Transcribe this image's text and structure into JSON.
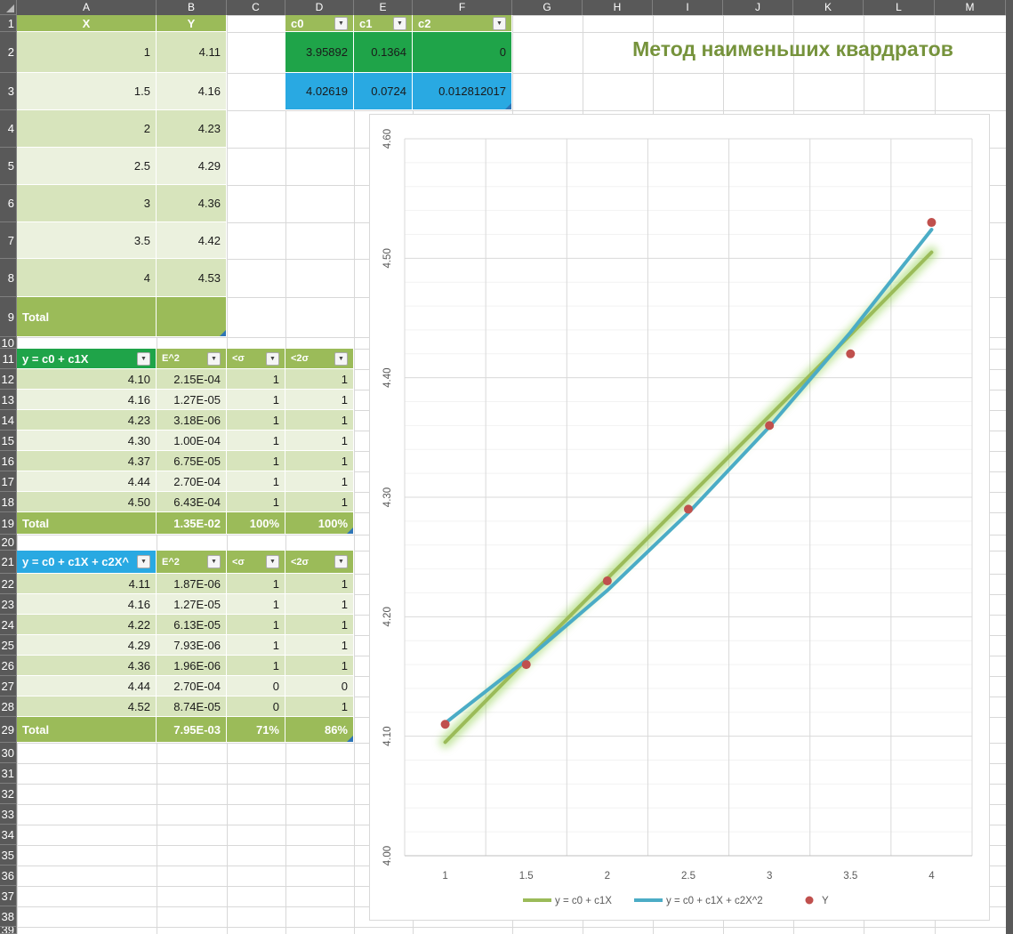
{
  "sheet": {
    "title": "Метод наименьших квардратов",
    "column_headers": [
      "A",
      "B",
      "C",
      "D",
      "E",
      "F",
      "G",
      "H",
      "I",
      "J",
      "K",
      "L",
      "M"
    ],
    "row_headers": [
      "1",
      "2",
      "3",
      "4",
      "5",
      "6",
      "7",
      "8",
      "9",
      "10",
      "11",
      "12",
      "13",
      "14",
      "15",
      "16",
      "17",
      "18",
      "19",
      "20",
      "21",
      "22",
      "23",
      "24",
      "25",
      "26",
      "27",
      "28",
      "29",
      "30",
      "31",
      "32",
      "33",
      "34",
      "35",
      "36",
      "37",
      "38",
      "39"
    ]
  },
  "colors": {
    "header_bar": "#595959",
    "olive_header": "#9BBB59",
    "band_dark": "#D7E4BC",
    "band_light": "#EBF1DE",
    "bright_green": "#1FA449",
    "bright_blue": "#29A9E2",
    "title_green": "#76933C",
    "handle_blue": "#2E75B6"
  },
  "data_table": {
    "col_x": "X",
    "col_y": "Y",
    "rows": [
      [
        "1",
        "4.11"
      ],
      [
        "1.5",
        "4.16"
      ],
      [
        "2",
        "4.23"
      ],
      [
        "2.5",
        "4.29"
      ],
      [
        "3",
        "4.36"
      ],
      [
        "3.5",
        "4.42"
      ],
      [
        "4",
        "4.53"
      ]
    ],
    "total_label": "Total"
  },
  "coefficients": {
    "headers": [
      "c0",
      "c1",
      "c2"
    ],
    "linear": [
      "3.95892",
      "0.1364",
      "0"
    ],
    "quadratic": [
      "4.02619",
      "0.0724",
      "0.012812017"
    ]
  },
  "linear_fit": {
    "headers": [
      "y = c0 + c1X",
      "E^2",
      "<σ",
      "<2σ"
    ],
    "rows": [
      [
        "4.10",
        "2.15E-04",
        "1",
        "1"
      ],
      [
        "4.16",
        "1.27E-05",
        "1",
        "1"
      ],
      [
        "4.23",
        "3.18E-06",
        "1",
        "1"
      ],
      [
        "4.30",
        "1.00E-04",
        "1",
        "1"
      ],
      [
        "4.37",
        "6.75E-05",
        "1",
        "1"
      ],
      [
        "4.44",
        "2.70E-04",
        "1",
        "1"
      ],
      [
        "4.50",
        "6.43E-04",
        "1",
        "1"
      ]
    ],
    "total": [
      "Total",
      "1.35E-02",
      "100%",
      "100%"
    ]
  },
  "quadratic_fit": {
    "headers": [
      "y = c0 + c1X + c2X^",
      "E^2",
      "<σ",
      "<2σ"
    ],
    "rows": [
      [
        "4.11",
        "1.87E-06",
        "1",
        "1"
      ],
      [
        "4.16",
        "1.27E-05",
        "1",
        "1"
      ],
      [
        "4.22",
        "6.13E-05",
        "1",
        "1"
      ],
      [
        "4.29",
        "7.93E-06",
        "1",
        "1"
      ],
      [
        "4.36",
        "1.96E-06",
        "1",
        "1"
      ],
      [
        "4.44",
        "2.70E-04",
        "0",
        "0"
      ],
      [
        "4.52",
        "8.74E-05",
        "0",
        "1"
      ]
    ],
    "total": [
      "Total",
      "7.95E-03",
      "71%",
      "86%"
    ]
  },
  "chart_data": {
    "type": "line",
    "categories": [
      1,
      1.5,
      2,
      2.5,
      3,
      3.5,
      4
    ],
    "x_ticks": [
      "1",
      "1.5",
      "2",
      "2.5",
      "3",
      "3.5",
      "4"
    ],
    "y_ticks": [
      "4.00",
      "4.10",
      "4.20",
      "4.30",
      "4.40",
      "4.50",
      "4.60"
    ],
    "ylim": [
      4.0,
      4.6
    ],
    "y_major": 0.1,
    "y_minor": 0.02,
    "grid": true,
    "legend_position": "bottom",
    "series": [
      {
        "name": "y = c0 + c1X",
        "type": "line",
        "color": "#9BBB59",
        "glow": "#92D050",
        "values": [
          4.095,
          4.164,
          4.232,
          4.3,
          4.368,
          4.436,
          4.505
        ]
      },
      {
        "name": "y = c0 + c1X + c2X^2",
        "type": "line",
        "color": "#4BACC6",
        "values": [
          4.111,
          4.164,
          4.222,
          4.287,
          4.359,
          4.438,
          4.524
        ]
      },
      {
        "name": "Y",
        "type": "scatter",
        "color": "#C0504D",
        "values": [
          4.11,
          4.16,
          4.23,
          4.29,
          4.36,
          4.42,
          4.53
        ]
      }
    ]
  }
}
